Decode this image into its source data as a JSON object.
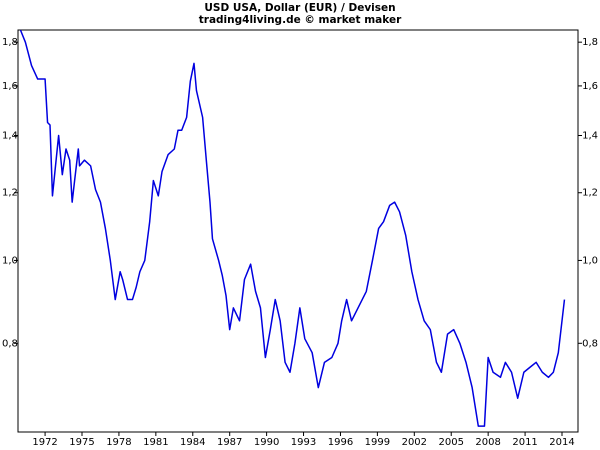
{
  "chart_data": {
    "type": "line",
    "title": "USD USA, Dollar (EUR) / Devisen",
    "subtitle": "trading4living.de © market maker",
    "x": [
      1970.0,
      1970.4,
      1970.9,
      1971.4,
      1972.0,
      1972.2,
      1972.4,
      1972.6,
      1972.8,
      1973.1,
      1973.4,
      1973.7,
      1974.0,
      1974.2,
      1974.4,
      1974.7,
      1974.8,
      1975.2,
      1975.7,
      1976.1,
      1976.5,
      1976.9,
      1977.3,
      1977.7,
      1978.1,
      1978.3,
      1978.7,
      1979.1,
      1979.4,
      1979.7,
      1980.1,
      1980.5,
      1980.8,
      1981.2,
      1981.5,
      1982.0,
      1982.5,
      1982.8,
      1983.1,
      1983.5,
      1983.8,
      1984.1,
      1984.3,
      1984.8,
      1985.1,
      1985.4,
      1985.6,
      1986.1,
      1986.4,
      1986.7,
      1987.0,
      1987.3,
      1987.8,
      1988.2,
      1988.7,
      1989.1,
      1989.5,
      1989.9,
      1990.3,
      1990.7,
      1991.1,
      1991.5,
      1991.9,
      1992.3,
      1992.7,
      1993.1,
      1993.7,
      1994.2,
      1994.7,
      1995.3,
      1995.8,
      1996.1,
      1996.5,
      1996.9,
      1997.6,
      1998.1,
      1998.6,
      1999.1,
      1999.5,
      2000.0,
      2000.4,
      2000.8,
      2001.3,
      2001.8,
      2002.3,
      2002.8,
      2003.3,
      2003.8,
      2004.2,
      2004.7,
      2005.2,
      2005.7,
      2006.2,
      2006.7,
      2007.2,
      2007.7,
      2008.0,
      2008.4,
      2009.0,
      2009.4,
      2009.9,
      2010.4,
      2010.9,
      2011.4,
      2011.9,
      2012.4,
      2012.9,
      2013.3,
      2013.7,
      2014.0,
      2014.2
    ],
    "series": [
      {
        "color": "#0000e0",
        "values": [
          1.86,
          1.8,
          1.69,
          1.63,
          1.63,
          1.45,
          1.44,
          1.19,
          1.27,
          1.4,
          1.26,
          1.35,
          1.31,
          1.17,
          1.24,
          1.35,
          1.29,
          1.31,
          1.29,
          1.21,
          1.17,
          1.09,
          1.0,
          0.9,
          0.97,
          0.95,
          0.9,
          0.9,
          0.93,
          0.97,
          1.0,
          1.11,
          1.24,
          1.19,
          1.27,
          1.33,
          1.35,
          1.42,
          1.42,
          1.47,
          1.62,
          1.7,
          1.58,
          1.47,
          1.31,
          1.17,
          1.06,
          1.0,
          0.96,
          0.91,
          0.83,
          0.88,
          0.85,
          0.95,
          0.99,
          0.92,
          0.88,
          0.77,
          0.83,
          0.9,
          0.85,
          0.76,
          0.74,
          0.8,
          0.88,
          0.81,
          0.78,
          0.71,
          0.76,
          0.77,
          0.8,
          0.85,
          0.9,
          0.85,
          0.89,
          0.92,
          1.0,
          1.09,
          1.11,
          1.16,
          1.17,
          1.14,
          1.07,
          0.97,
          0.9,
          0.85,
          0.83,
          0.76,
          0.74,
          0.82,
          0.83,
          0.8,
          0.76,
          0.71,
          0.64,
          0.64,
          0.77,
          0.74,
          0.73,
          0.76,
          0.74,
          0.69,
          0.74,
          0.75,
          0.76,
          0.74,
          0.73,
          0.74,
          0.78,
          0.85,
          0.9
        ]
      }
    ],
    "xlim": [
      1969.8,
      2015.3
    ],
    "xticks": [
      1972,
      1975,
      1978,
      1981,
      1984,
      1987,
      1990,
      1993,
      1996,
      1999,
      2002,
      2005,
      2008,
      2011,
      2014
    ],
    "ylim": [
      0.63,
      1.86
    ],
    "yticks": [
      {
        "value": 0.8,
        "label": "0,8"
      },
      {
        "value": 1.0,
        "label": "1,0"
      },
      {
        "value": 1.2,
        "label": "1,2"
      },
      {
        "value": 1.4,
        "label": "1,4"
      },
      {
        "value": 1.6,
        "label": "1,6"
      },
      {
        "value": 1.8,
        "label": "1,8"
      }
    ],
    "log_y": true,
    "grid": false
  }
}
